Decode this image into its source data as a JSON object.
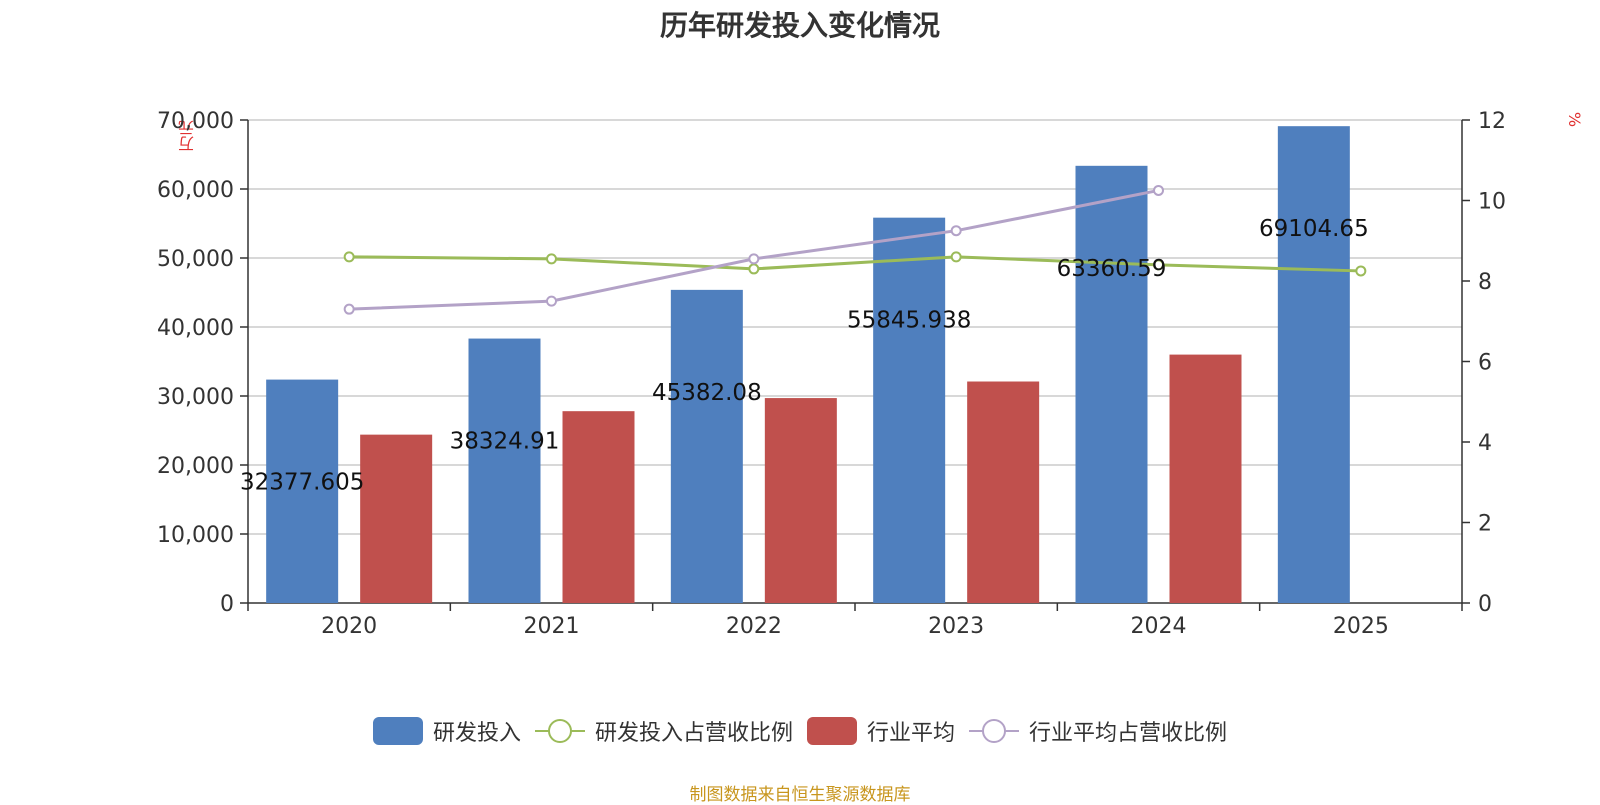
{
  "title": "历年研发投入变化情况",
  "source": "制图数据来自恒生聚源数据库",
  "chart_data": {
    "type": "bar",
    "categories": [
      "2020",
      "2021",
      "2022",
      "2023",
      "2024",
      "2025"
    ],
    "y_left": {
      "unit": "万元",
      "min": 0,
      "max": 70000,
      "ticks": [
        0,
        10000,
        20000,
        30000,
        40000,
        50000,
        60000,
        70000
      ],
      "tick_labels": [
        "0",
        "10,000",
        "20,000",
        "30,000",
        "40,000",
        "50,000",
        "60,000",
        "70,000"
      ]
    },
    "y_right": {
      "unit": "%",
      "min": 0,
      "max": 12,
      "ticks": [
        0,
        2,
        4,
        6,
        8,
        10,
        12
      ],
      "tick_labels": [
        "0",
        "2",
        "4",
        "6",
        "8",
        "10",
        "12"
      ]
    },
    "series": [
      {
        "name": "研发投入",
        "type": "bar",
        "axis": "left",
        "color": "#4f7fbe",
        "values": [
          32377.605,
          38324.91,
          45382.08,
          55845.938,
          63360.59,
          69104.65
        ],
        "labels": [
          "32377.605",
          "38324.91",
          "45382.08",
          "55845.938",
          "63360.59",
          "69104.65"
        ]
      },
      {
        "name": "研发投入占营收比例",
        "type": "line",
        "axis": "right",
        "color": "#9bbb59",
        "values": [
          8.6,
          8.55,
          8.3,
          8.6,
          8.4,
          8.25
        ]
      },
      {
        "name": "行业平均",
        "type": "bar",
        "axis": "left",
        "color": "#c0504d",
        "values": [
          24400,
          27800,
          29700,
          32100,
          36000,
          null
        ]
      },
      {
        "name": "行业平均占营收比例",
        "type": "line",
        "axis": "right",
        "color": "#b3a2c7",
        "values": [
          7.3,
          7.5,
          8.55,
          9.25,
          10.25,
          null
        ]
      }
    ]
  }
}
